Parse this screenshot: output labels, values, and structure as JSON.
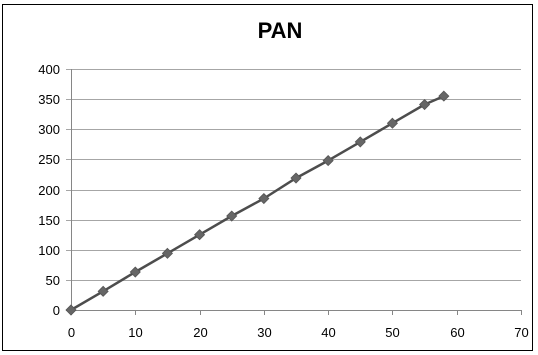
{
  "chart_data": {
    "type": "line",
    "title": "PAN",
    "xlabel": "",
    "ylabel": "",
    "xlim": [
      0,
      70
    ],
    "ylim": [
      0,
      400
    ],
    "x_ticks": [
      0,
      10,
      20,
      30,
      40,
      50,
      60,
      70
    ],
    "y_ticks": [
      0,
      50,
      100,
      150,
      200,
      250,
      300,
      350,
      400
    ],
    "grid": "horizontal",
    "legend": "none",
    "series": [
      {
        "x": [
          0,
          5,
          10,
          15,
          20,
          25,
          30,
          35,
          40,
          45,
          50,
          55,
          58
        ],
        "y": [
          0,
          31,
          63,
          94,
          125,
          156,
          185,
          219,
          248,
          279,
          310,
          341,
          355
        ],
        "color": "#4d4d4d",
        "marker": "diamond"
      }
    ]
  }
}
